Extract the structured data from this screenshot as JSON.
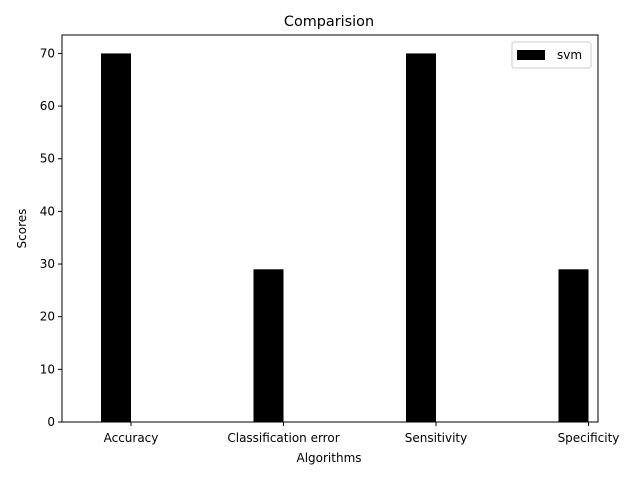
{
  "chart_data": {
    "type": "bar",
    "title": "Comparision",
    "xlabel": "Algorithms",
    "ylabel": "Scores",
    "categories": [
      "Accuracy",
      "Classification error",
      "Sensitivity",
      "Specificity"
    ],
    "series": [
      {
        "name": "svm",
        "values": [
          70,
          29,
          70,
          29
        ],
        "color": "#000000"
      }
    ],
    "ylim": [
      0,
      73.5
    ],
    "yticks": [
      0,
      10,
      20,
      30,
      40,
      50,
      60,
      70
    ],
    "grid": false,
    "legend": "top-right"
  }
}
